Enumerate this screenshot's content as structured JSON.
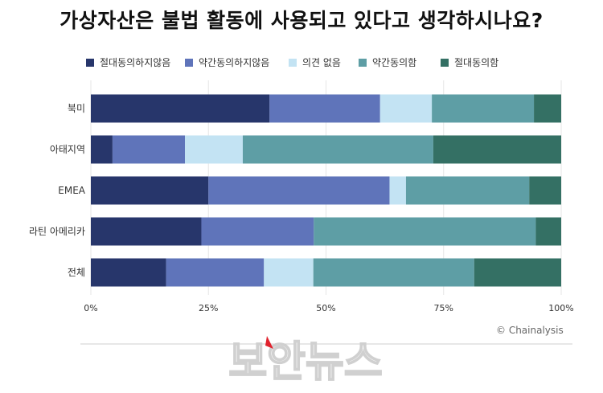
{
  "title": "가상자산은 불법 활동에 사용되고 있다고 생각하시나요?",
  "credit": "© Chainalysis",
  "watermark": "보안뉴스",
  "colors": {
    "strongly_disagree": "#27366b",
    "somewhat_disagree": "#5f74ba",
    "no_opinion": "#c3e3f3",
    "somewhat_agree": "#5e9ea5",
    "strongly_agree": "#347064"
  },
  "chart_data": {
    "type": "bar",
    "orientation": "horizontal",
    "stacked": true,
    "categories": [
      "북미",
      "아태지역",
      "EMEA",
      "라틴 아메리카",
      "전체"
    ],
    "series": [
      {
        "name": "절대동의하지않음",
        "color": "#27366b",
        "values": [
          38,
          4.6,
          25,
          23.5,
          16
        ]
      },
      {
        "name": "약간동의하지않음",
        "color": "#5f74ba",
        "values": [
          23.5,
          15.4,
          38.5,
          23.9,
          20.8
        ]
      },
      {
        "name": "의견 없음",
        "color": "#c3e3f3",
        "values": [
          11,
          12.3,
          3.5,
          0,
          10.5
        ]
      },
      {
        "name": "약간동의함",
        "color": "#5e9ea5",
        "values": [
          21.7,
          40.5,
          26.2,
          47.2,
          34.2
        ]
      },
      {
        "name": "절대동의함",
        "color": "#347064",
        "values": [
          5.8,
          27.2,
          6.8,
          5.4,
          18.5
        ]
      }
    ],
    "xticks": [
      "0%",
      "25%",
      "50%",
      "75%",
      "100%"
    ],
    "xlim": [
      0,
      100
    ],
    "legend_position": "top",
    "grid": true
  }
}
